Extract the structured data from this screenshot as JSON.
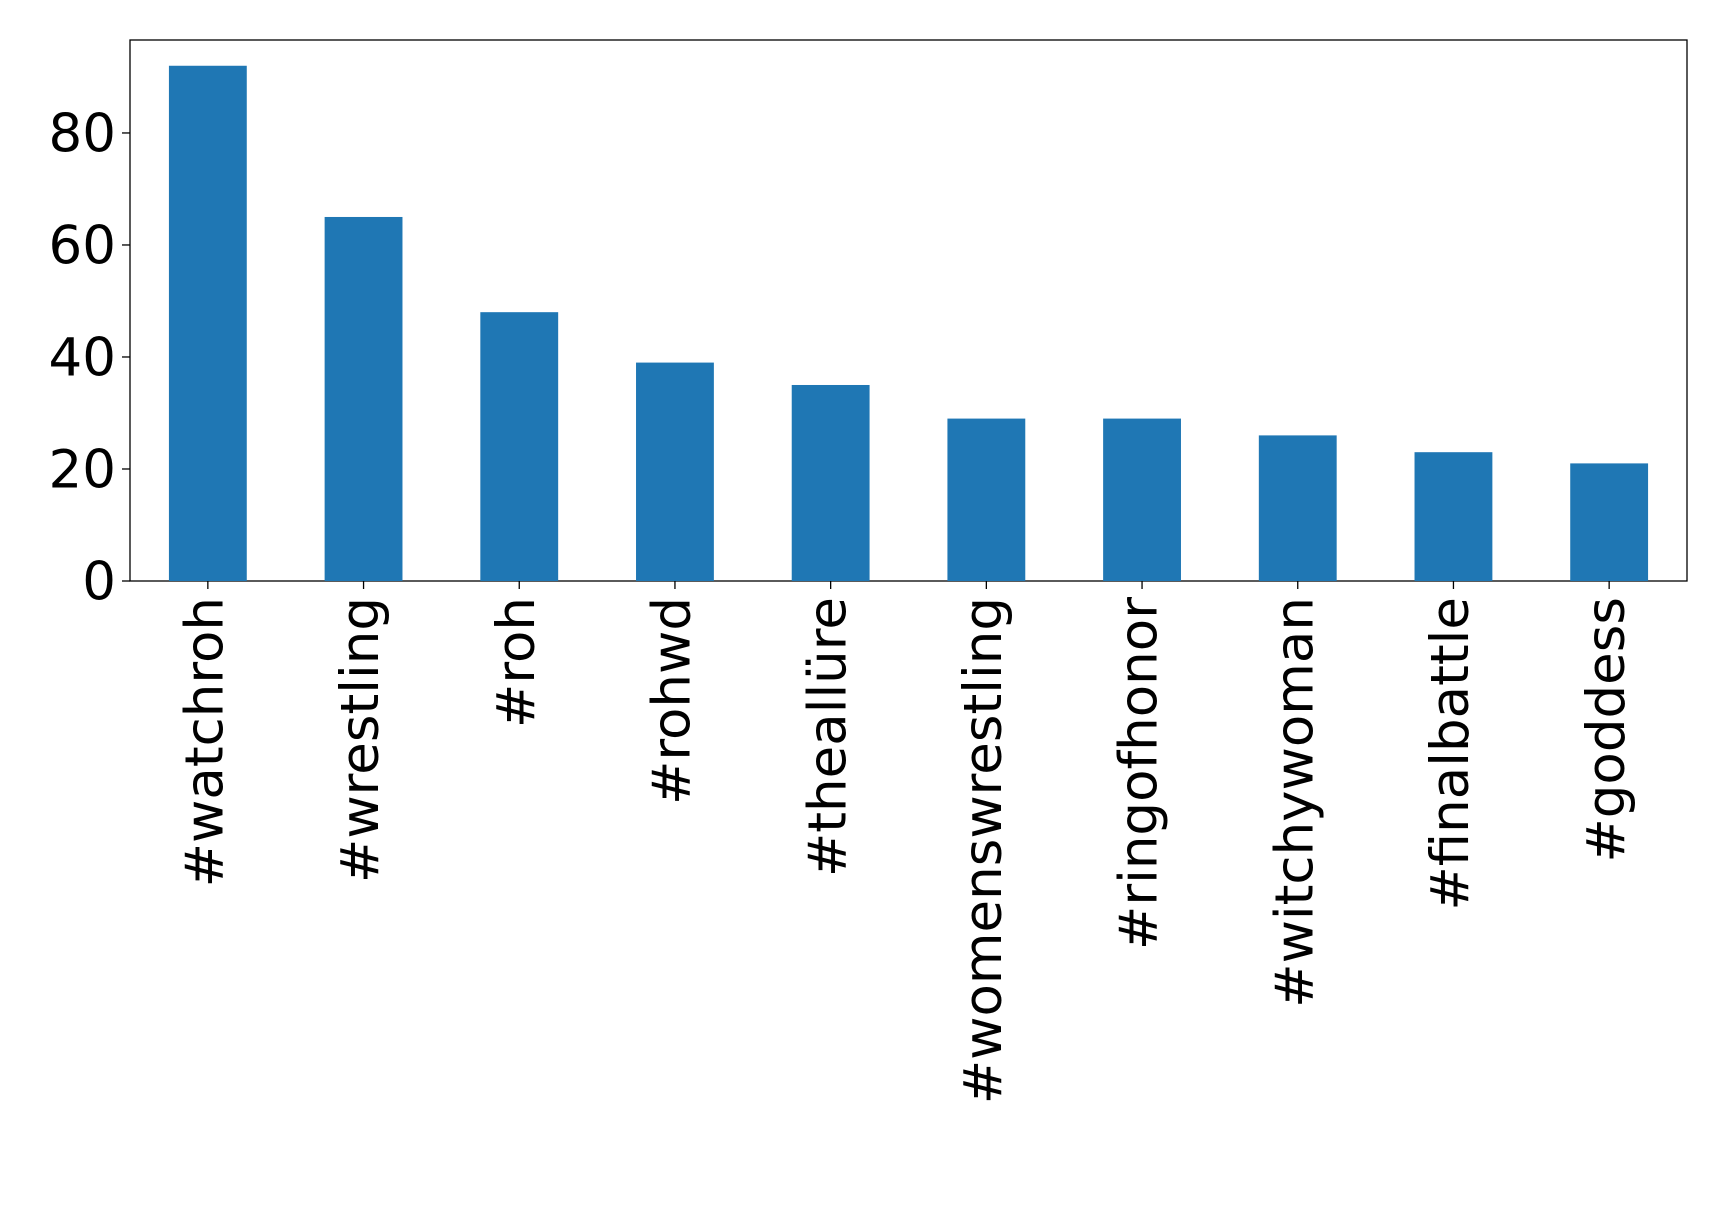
{
  "chart_data": {
    "type": "bar",
    "categories": [
      "#watchroh",
      "#wrestling",
      "#roh",
      "#rohwd",
      "#theallüre",
      "#womenswrestling",
      "#ringofhonor",
      "#witchywoman",
      "#finalbattle",
      "#goddess"
    ],
    "values": [
      92,
      65,
      48,
      39,
      35,
      29,
      29,
      26,
      23,
      21
    ],
    "color": "#1f77b4",
    "ylim": [
      0,
      96.6
    ],
    "yticks": [
      0,
      20,
      40,
      60,
      80
    ],
    "grid": false
  }
}
